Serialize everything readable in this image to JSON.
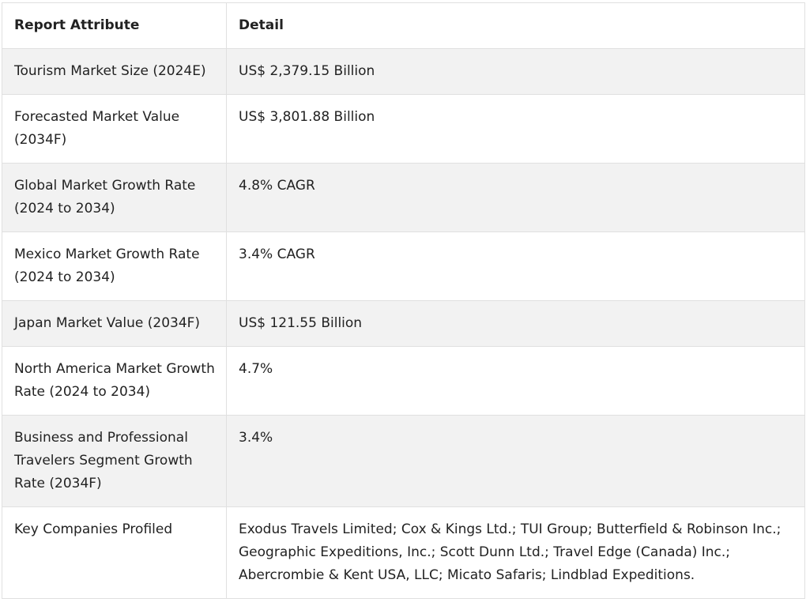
{
  "table": {
    "headers": [
      "Report Attribute",
      "Detail"
    ],
    "rows": [
      [
        "Tourism Market Size (2024E)",
        "US$ 2,379.15 Billion"
      ],
      [
        "Forecasted Market Value (2034F)",
        "US$ 3,801.88 Billion"
      ],
      [
        "Global Market Growth Rate (2024 to 2034)",
        "4.8% CAGR"
      ],
      [
        "Mexico Market Growth Rate (2024 to 2034)",
        "3.4% CAGR"
      ],
      [
        "Japan Market Value (2034F)",
        "US$ 121.55 Billion"
      ],
      [
        "North America Market Growth Rate (2024 to 2034)",
        "4.7%"
      ],
      [
        "Business and Professional Travelers Segment Growth Rate (2034F)",
        "3.4%"
      ],
      [
        "Key Companies Profiled",
        "Exodus Travels Limited; Cox & Kings Ltd.; TUI Group; Butterfield & Robinson Inc.; Geographic Expeditions, Inc.; Scott Dunn Ltd.; Travel Edge (Canada) Inc.; Abercrombie & Kent USA, LLC; Micato Safaris; Lindblad Expeditions."
      ]
    ]
  }
}
